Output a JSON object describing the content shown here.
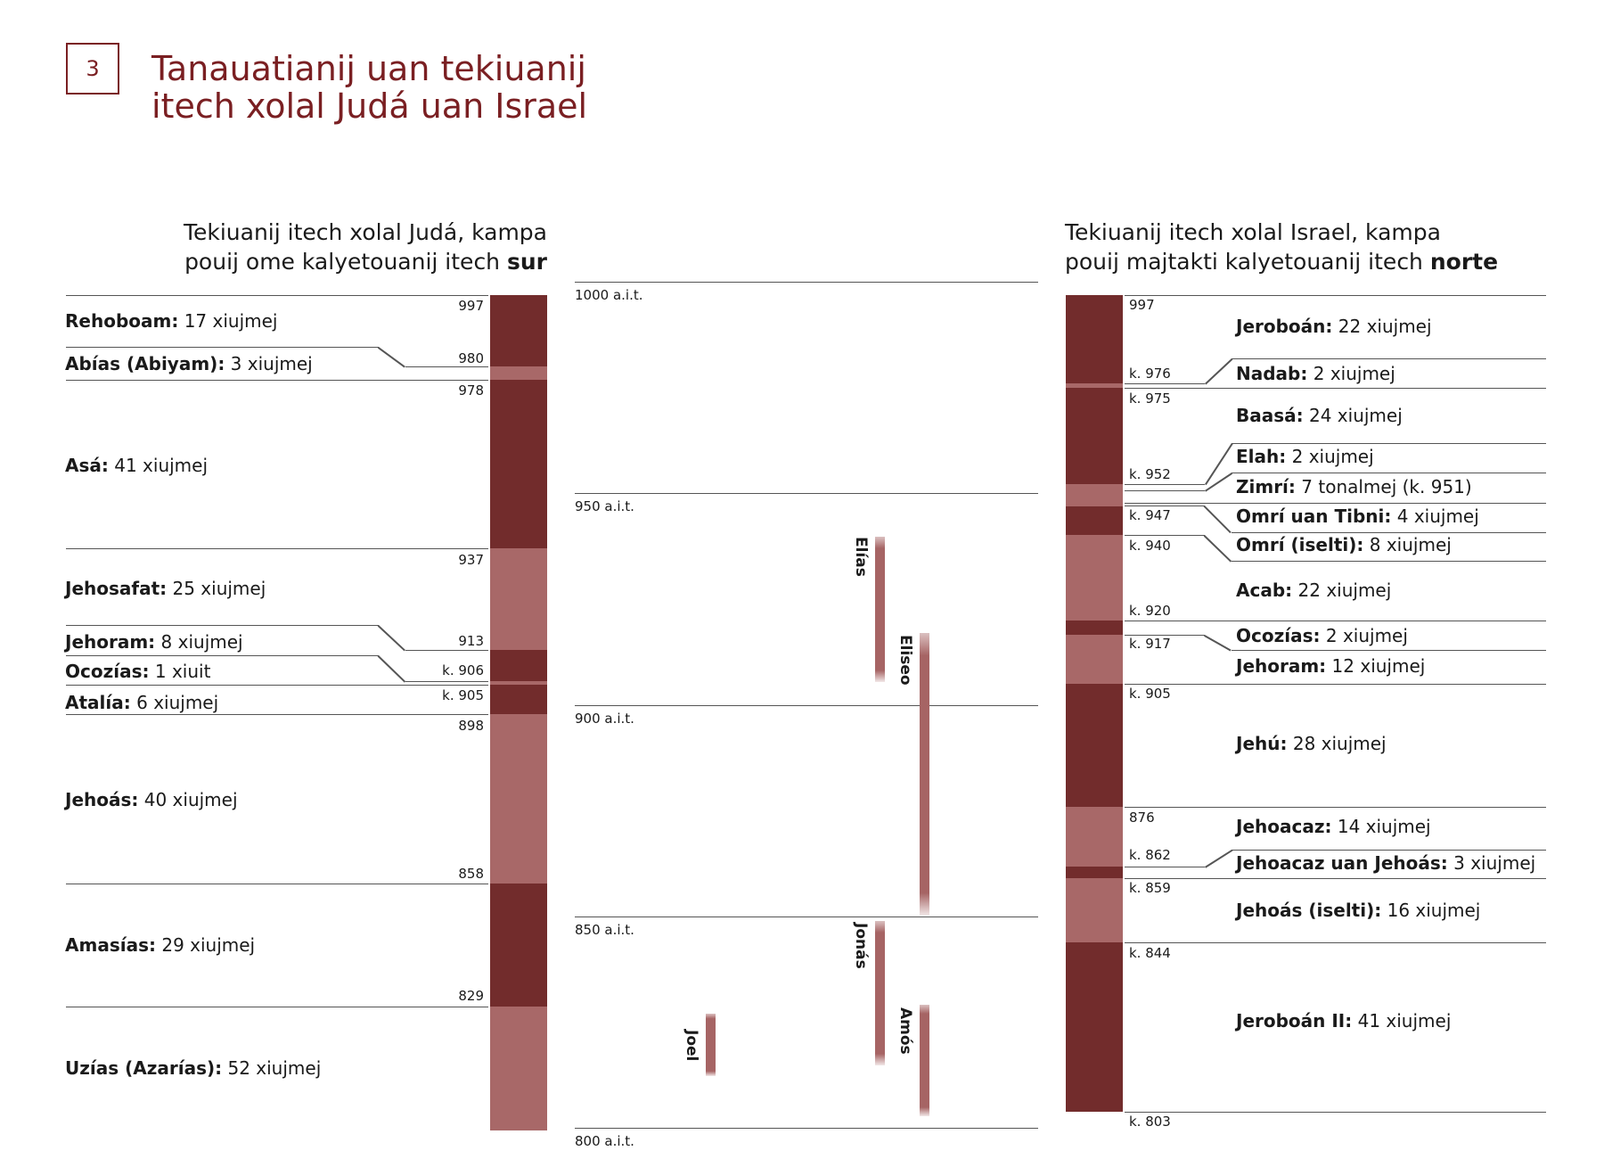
{
  "figure": {
    "number": "3",
    "title_line1": "Tanauatianij uan tekiuanij",
    "title_line2": "itech xolal Judá uan Israel"
  },
  "colors": {
    "dark": "#722c2c",
    "light": "#a86868",
    "accent": "#7a1f22",
    "line": "#555555"
  },
  "juda": {
    "heading_line1": "Tekiuanij itech xolal Judá, kampa",
    "heading_line2_prefix": "pouij ome kalyetouanij itech ",
    "heading_line2_bold": "sur",
    "kings": [
      {
        "name": "Rehoboam:",
        "reign": " 17 xiujmej"
      },
      {
        "name": "Abías (Abiyam):",
        "reign": " 3 xiujmej"
      },
      {
        "name": "Asá:",
        "reign": " 41 xiujmej"
      },
      {
        "name": "Jehosafat:",
        "reign": " 25 xiujmej"
      },
      {
        "name": "Jehoram:",
        "reign": " 8 xiujmej"
      },
      {
        "name": "Ocozías:",
        "reign": " 1 xiuit"
      },
      {
        "name": "Atalía:",
        "reign": " 6 xiujmej"
      },
      {
        "name": "Jehoás:",
        "reign": " 40 xiujmej"
      },
      {
        "name": "Amasías:",
        "reign": " 29 xiujmej"
      },
      {
        "name": "Uzías (Azarías):",
        "reign": " 52 xiujmej"
      }
    ],
    "years": [
      "997",
      "980",
      "978",
      "937",
      "913",
      "k. 906",
      "k. 905",
      "898",
      "858",
      "829"
    ]
  },
  "timeline": {
    "ticks": [
      "1000 a.i.t.",
      "950 a.i.t.",
      "900 a.i.t.",
      "850 a.i.t.",
      "800 a.i.t."
    ],
    "prophets": [
      "Elías",
      "Eliseo",
      "Jonás",
      "Amós",
      "Joel"
    ]
  },
  "israel": {
    "heading_line1": "Tekiuanij itech xolal Israel, kampa",
    "heading_line2_prefix": "pouij majtakti kalyetouanij itech ",
    "heading_line2_bold": "norte",
    "kings": [
      {
        "name": "Jeroboán:",
        "reign": " 22 xiujmej"
      },
      {
        "name": "Nadab:",
        "reign": " 2 xiujmej"
      },
      {
        "name": "Baasá:",
        "reign": " 24 xiujmej"
      },
      {
        "name": "Elah:",
        "reign": " 2 xiujmej"
      },
      {
        "name": "Zimrí:",
        "reign": " 7 tonalmej (k. 951)"
      },
      {
        "name": "Omrí uan Tibni:",
        "reign": " 4 xiujmej"
      },
      {
        "name": "Omrí (iselti):",
        "reign": " 8 xiujmej"
      },
      {
        "name": "Acab:",
        "reign": " 22 xiujmej"
      },
      {
        "name": "Ocozías:",
        "reign": " 2 xiujmej"
      },
      {
        "name": "Jehoram:",
        "reign": " 12 xiujmej"
      },
      {
        "name": "Jehú:",
        "reign": " 28 xiujmej"
      },
      {
        "name": "Jehoacaz:",
        "reign": " 14 xiujmej"
      },
      {
        "name": "Jehoacaz uan Jehoás:",
        "reign": " 3 xiujmej"
      },
      {
        "name": "Jehoás (iselti):",
        "reign": " 16 xiujmej"
      },
      {
        "name": "Jeroboán II:",
        "reign": " 41 xiujmej"
      }
    ],
    "years": [
      "997",
      "k. 976",
      "k. 975",
      "k. 952",
      "k. 947",
      "k. 940",
      "k. 920",
      "k. 917",
      "k. 905",
      "876",
      "k. 862",
      "k. 859",
      "k. 844",
      "k. 803"
    ]
  }
}
